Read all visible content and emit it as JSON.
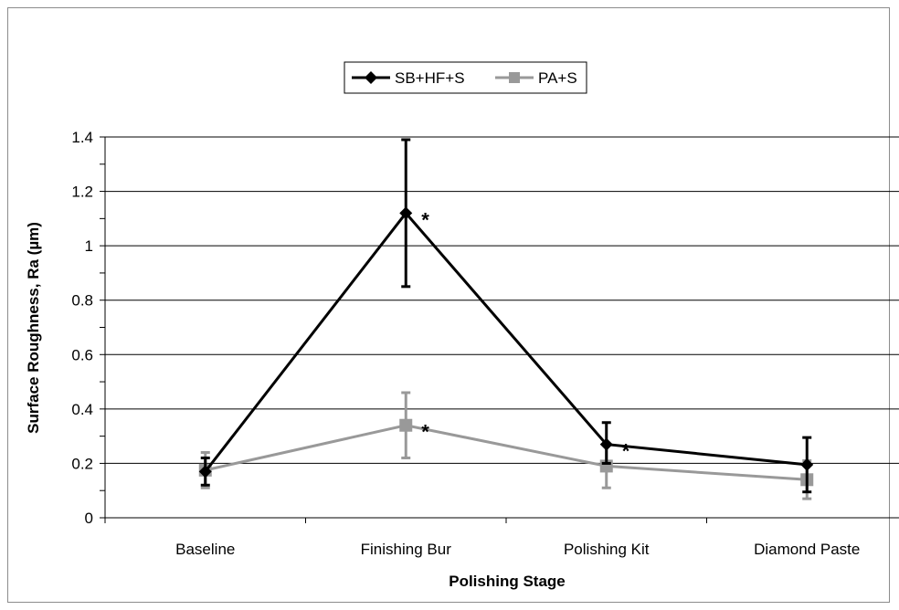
{
  "chart_data": {
    "type": "line",
    "xlabel": "Polishing Stage",
    "ylabel": "Surface Roughness, Ra (µm)",
    "categories": [
      "Baseline",
      "Finishing Bur",
      "Polishing Kit",
      "Diamond Paste"
    ],
    "ylim": [
      0,
      1.4
    ],
    "yticks": [
      0,
      0.2,
      0.4,
      0.6,
      0.8,
      1,
      1.2,
      1.4
    ],
    "ytick_labels": [
      "0",
      "0.2",
      "0.4",
      "0.6",
      "0.8",
      "1",
      "1.2",
      "1.4"
    ],
    "grid": true,
    "legend_position": "top-center",
    "series": [
      {
        "name": "SB+HF+S",
        "color": "#000000",
        "marker": "diamond",
        "values": [
          0.17,
          1.12,
          0.27,
          0.195
        ],
        "error_low": [
          0.12,
          0.85,
          0.2,
          0.095
        ],
        "error_high": [
          0.22,
          1.39,
          0.35,
          0.295
        ],
        "significance": [
          "",
          "*",
          "*",
          ""
        ]
      },
      {
        "name": "PA+S",
        "color": "#999999",
        "marker": "square",
        "values": [
          0.175,
          0.34,
          0.19,
          0.14
        ],
        "error_low": [
          0.11,
          0.22,
          0.11,
          0.07
        ],
        "error_high": [
          0.24,
          0.46,
          0.27,
          0.21
        ],
        "significance": [
          "",
          "*",
          "",
          ""
        ]
      }
    ]
  }
}
